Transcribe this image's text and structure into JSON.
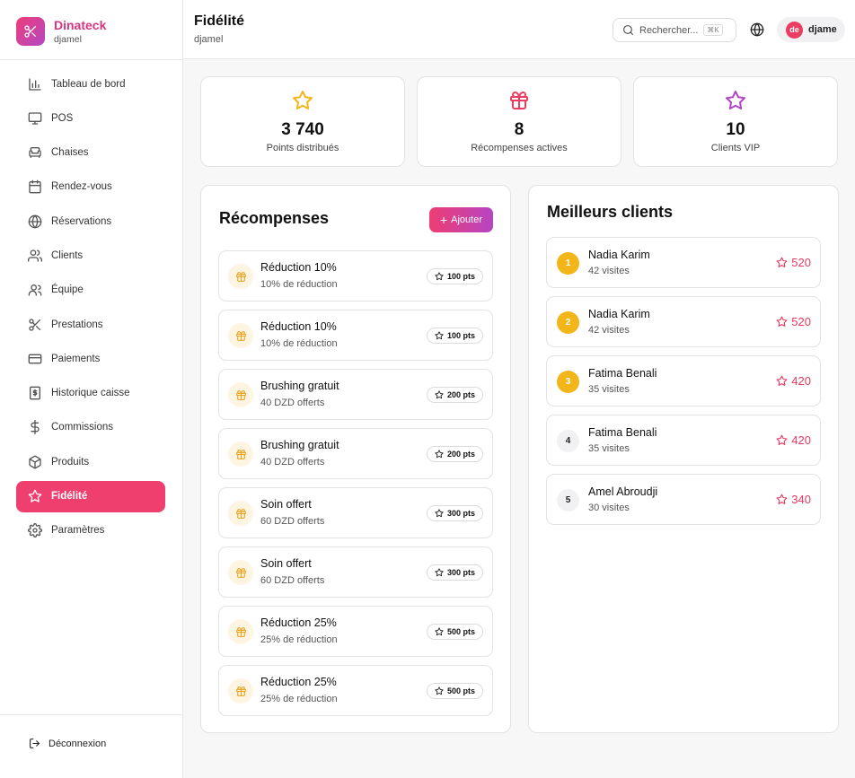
{
  "brand": {
    "name": "Dinateck",
    "subtitle": "djamel"
  },
  "nav": [
    {
      "label": "Tableau de bord",
      "icon": "bar-chart-icon"
    },
    {
      "label": "POS",
      "icon": "monitor-icon"
    },
    {
      "label": "Chaises",
      "icon": "armchair-icon"
    },
    {
      "label": "Rendez-vous",
      "icon": "calendar-icon"
    },
    {
      "label": "Réservations",
      "icon": "globe-icon"
    },
    {
      "label": "Clients",
      "icon": "users-icon"
    },
    {
      "label": "Équipe",
      "icon": "user-group-icon"
    },
    {
      "label": "Prestations",
      "icon": "scissors-icon"
    },
    {
      "label": "Paiements",
      "icon": "credit-card-icon"
    },
    {
      "label": "Historique caisse",
      "icon": "receipt-icon"
    },
    {
      "label": "Commissions",
      "icon": "dollar-icon"
    },
    {
      "label": "Produits",
      "icon": "box-icon"
    },
    {
      "label": "Fidélité",
      "icon": "star-icon",
      "active": true
    },
    {
      "label": "Paramètres",
      "icon": "gear-icon"
    }
  ],
  "logout_label": "Déconnexion",
  "header": {
    "title": "Fidélité",
    "subtitle": "djamel",
    "search_placeholder": "Rechercher...",
    "search_shortcut": "⌘K",
    "user_initials": "de",
    "user_name": "djame"
  },
  "stats": [
    {
      "value": "3 740",
      "label": "Points distribués",
      "icon": "star-icon",
      "color": "#f2b51a"
    },
    {
      "value": "8",
      "label": "Récompenses actives",
      "icon": "gift-icon",
      "color": "#ea3d62"
    },
    {
      "value": "10",
      "label": "Clients VIP",
      "icon": "star-icon",
      "color": "#b545c8"
    }
  ],
  "rewards": {
    "title": "Récompenses",
    "add_label": "Ajouter",
    "items": [
      {
        "name": "Réduction 10%",
        "desc": "10% de réduction",
        "pts": "100 pts"
      },
      {
        "name": "Réduction 10%",
        "desc": "10% de réduction",
        "pts": "100 pts"
      },
      {
        "name": "Brushing gratuit",
        "desc": "40 DZD offerts",
        "pts": "200 pts"
      },
      {
        "name": "Brushing gratuit",
        "desc": "40 DZD offerts",
        "pts": "200 pts"
      },
      {
        "name": "Soin offert",
        "desc": "60 DZD offerts",
        "pts": "300 pts"
      },
      {
        "name": "Soin offert",
        "desc": "60 DZD offerts",
        "pts": "300 pts"
      },
      {
        "name": "Réduction 25%",
        "desc": "25% de réduction",
        "pts": "500 pts"
      },
      {
        "name": "Réduction 25%",
        "desc": "25% de réduction",
        "pts": "500 pts"
      }
    ]
  },
  "top_clients": {
    "title": "Meilleurs clients",
    "items": [
      {
        "rank": "1",
        "name": "Nadia Karim",
        "visits": "42 visites",
        "points": "520",
        "medal": true
      },
      {
        "rank": "2",
        "name": "Nadia Karim",
        "visits": "42 visites",
        "points": "520",
        "medal": true
      },
      {
        "rank": "3",
        "name": "Fatima Benali",
        "visits": "35 visites",
        "points": "420",
        "medal": true
      },
      {
        "rank": "4",
        "name": "Fatima Benali",
        "visits": "35 visites",
        "points": "420",
        "medal": false
      },
      {
        "rank": "5",
        "name": "Amel Abroudji",
        "visits": "30 visites",
        "points": "340",
        "medal": false
      }
    ]
  },
  "colors": {
    "accent": "#ef3f6e",
    "brand_gradient_start": "#ee3d78",
    "brand_gradient_end": "#b347c4",
    "gold": "#f2b51a"
  }
}
